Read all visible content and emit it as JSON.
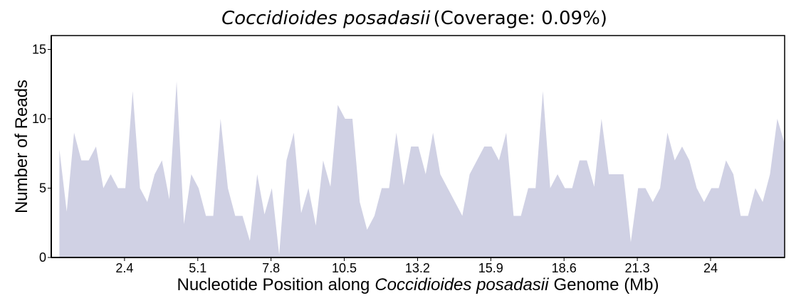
{
  "chart_data": {
    "type": "area",
    "title": {
      "species": "Coccidioides posadasii",
      "rest": "(Coverage: 0.09%)"
    },
    "xlabel": [
      "Nucleotide Position along",
      "Coccidioides posadasii",
      "Genome (Mb)"
    ],
    "ylabel": "Number of Reads",
    "color": "#d0d1e4",
    "x": [
      0,
      0.27,
      0.54,
      0.81,
      1.08,
      1.35,
      1.62,
      1.89,
      2.16,
      2.43,
      2.7,
      2.97,
      3.24,
      3.51,
      3.78,
      4.05,
      4.32,
      4.59,
      4.86,
      5.13,
      5.4,
      5.67,
      5.94,
      6.21,
      6.48,
      6.75,
      7.02,
      7.29,
      7.56,
      7.83,
      8.1,
      8.37,
      8.64,
      8.91,
      9.18,
      9.45,
      9.72,
      9.99,
      10.26,
      10.53,
      10.8,
      11.07,
      11.34,
      11.61,
      11.88,
      12.15,
      12.42,
      12.69,
      12.96,
      13.23,
      13.5,
      13.77,
      14.04,
      14.31,
      14.58,
      14.85,
      15.12,
      15.39,
      15.66,
      15.93,
      16.2,
      16.47,
      16.74,
      17.01,
      17.28,
      17.55,
      17.82,
      18.09,
      18.36,
      18.63,
      18.9,
      19.17,
      19.44,
      19.71,
      19.98,
      20.25,
      20.52,
      20.79,
      21.06,
      21.33,
      21.6,
      21.87,
      22.14,
      22.41,
      22.68,
      22.95,
      23.22,
      23.49,
      23.76,
      24.03,
      24.3,
      24.57,
      24.84,
      25.11,
      25.38,
      25.65,
      25.92,
      26.19,
      26.46,
      26.73
    ],
    "values": [
      7.8,
      3.3,
      9,
      7,
      7,
      8,
      5,
      6,
      5,
      5,
      12,
      5,
      4,
      6,
      7,
      4.2,
      12.7,
      2.4,
      6,
      5,
      3,
      3,
      10,
      5,
      3,
      3,
      1.2,
      6,
      3.1,
      5,
      0.2,
      7,
      9,
      3.2,
      5,
      2.3,
      7,
      5.1,
      11,
      10,
      10,
      4,
      2,
      3,
      5,
      5,
      9,
      5.2,
      8,
      8,
      6,
      9,
      6,
      5,
      4,
      3,
      6,
      7,
      8,
      8,
      7,
      9,
      3,
      3,
      5,
      5,
      12,
      5,
      6,
      5,
      5,
      7,
      7,
      5.1,
      10,
      6,
      6,
      6,
      1.1,
      5,
      5,
      4,
      5,
      9,
      7,
      8,
      7,
      5,
      4,
      5,
      5,
      7,
      6,
      3,
      3,
      5,
      4,
      6,
      10,
      8.2
    ],
    "xlim": [
      -0.3,
      26.73
    ],
    "ylim": [
      0,
      16
    ],
    "xticks": [
      2.4,
      5.1,
      7.8,
      10.5,
      13.2,
      15.9,
      18.6,
      21.3,
      24
    ],
    "yticks": [
      0,
      5,
      10,
      15
    ]
  }
}
